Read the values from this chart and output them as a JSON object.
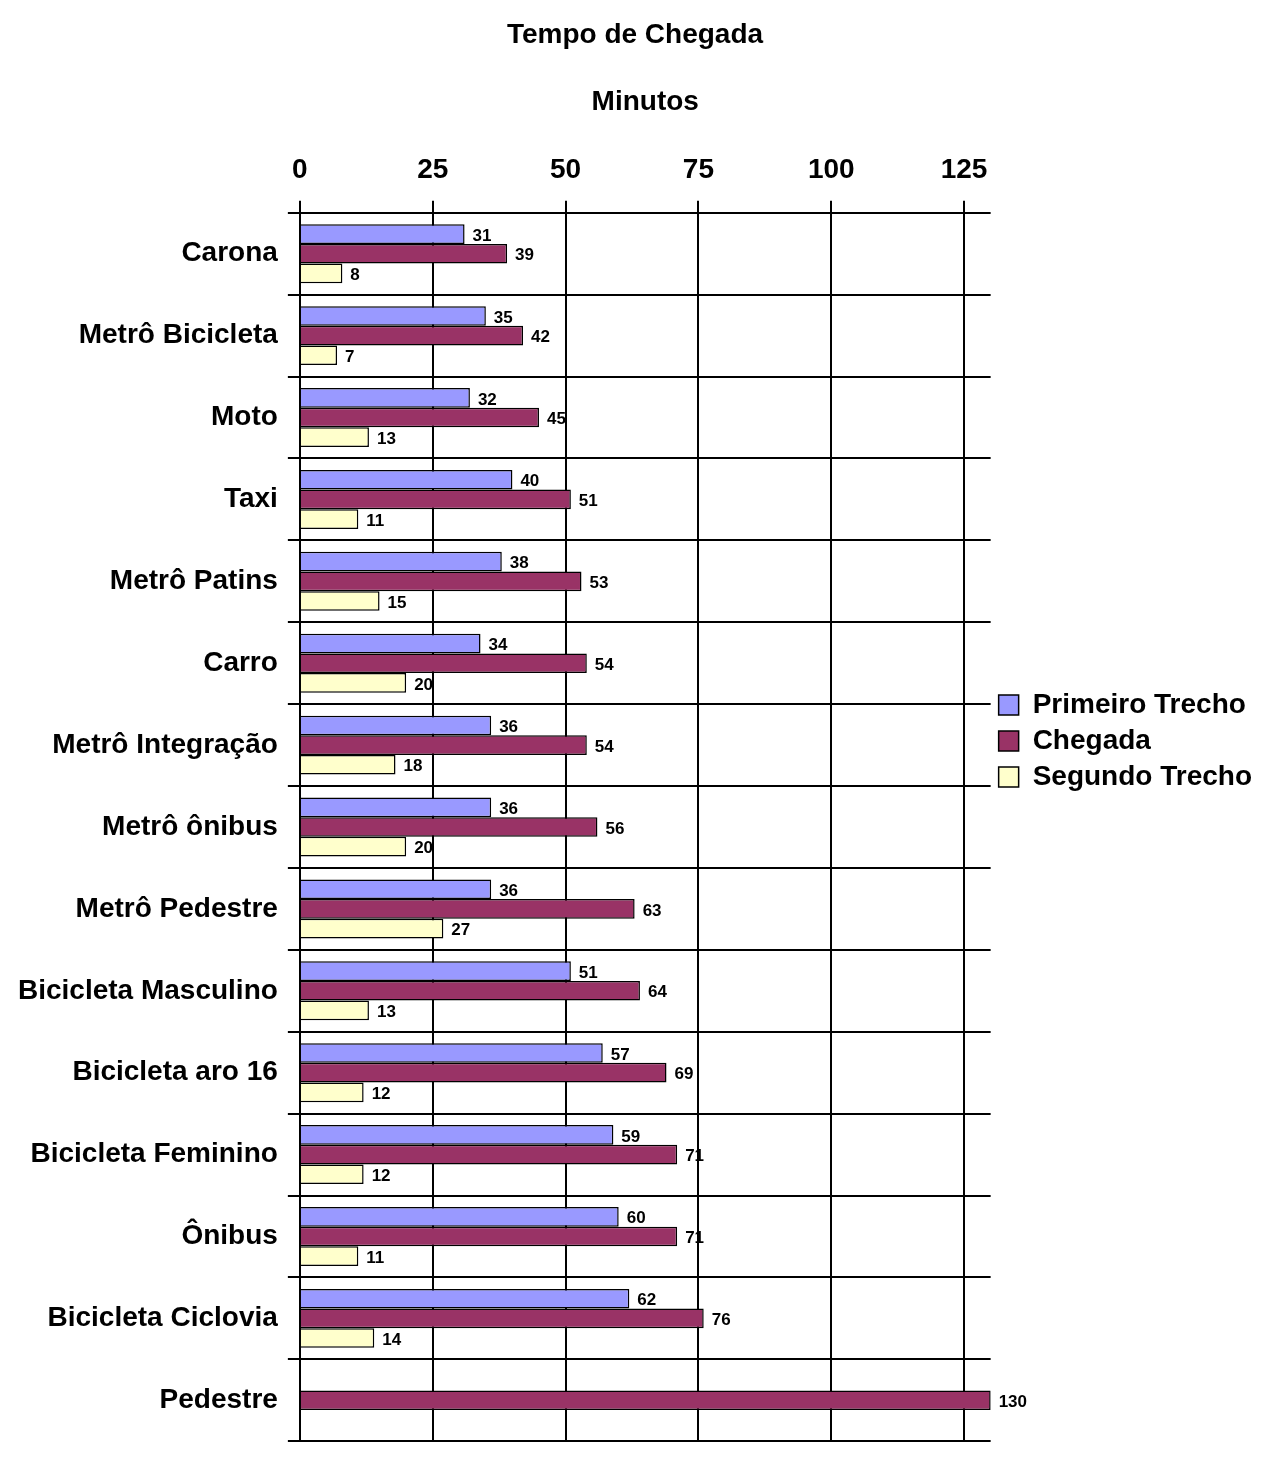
{
  "chart_data": {
    "type": "bar",
    "orientation": "horizontal",
    "title": "Tempo de Chegada",
    "xlabel": "Minutos",
    "categories": [
      "Carona",
      "Metrô Bicicleta",
      "Moto",
      "Taxi",
      "Metrô Patins",
      "Carro",
      "Metrô Integração",
      "Metrô ônibus",
      "Metrô Pedestre",
      "Bicicleta Masculino",
      "Bicicleta aro 16",
      "Bicicleta Feminino",
      "Ônibus",
      "Bicicleta Ciclovia",
      "Pedestre"
    ],
    "series": [
      {
        "name": "Primeiro Trecho",
        "color": "#9999ff",
        "values": [
          31,
          35,
          32,
          40,
          38,
          34,
          36,
          36,
          36,
          51,
          57,
          59,
          60,
          62,
          null
        ]
      },
      {
        "name": "Chegada",
        "color": "#993366",
        "values": [
          39,
          42,
          45,
          51,
          53,
          54,
          54,
          56,
          63,
          64,
          69,
          71,
          71,
          76,
          130
        ]
      },
      {
        "name": "Segundo Trecho",
        "color": "#ffffcc",
        "values": [
          8,
          7,
          13,
          11,
          15,
          20,
          18,
          20,
          27,
          13,
          12,
          12,
          11,
          14,
          null
        ]
      }
    ],
    "xlim": [
      0,
      130
    ],
    "xticks": [
      0,
      25,
      50,
      75,
      100,
      125
    ],
    "grid": "x",
    "legend": "right",
    "data_labels": true
  }
}
